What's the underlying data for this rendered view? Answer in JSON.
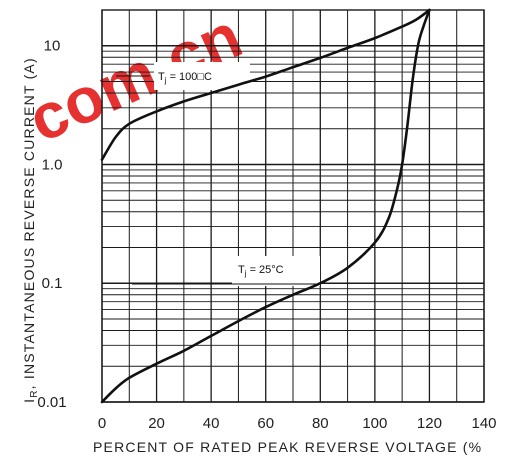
{
  "chart_data": {
    "type": "line",
    "title": "",
    "xlabel": "PERCENT OF RATED PEAK  REVERSE VOLTAGE (%",
    "ylabel_main": "I",
    "ylabel_sub": "R",
    "ylabel_rest": ", INSTANTANEOUS REVERSE CURRENT (A)",
    "xlim": [
      0,
      140
    ],
    "ylim": [
      0.01,
      20
    ],
    "yscale": "log",
    "grid": true,
    "x_ticks": [
      "0",
      "20",
      "40",
      "60",
      "80",
      "100",
      "120",
      "140"
    ],
    "y_ticks": [
      {
        "value": 0.01,
        "label": "0.01"
      },
      {
        "value": 0.1,
        "label": "0.1"
      },
      {
        "value": 1,
        "label": "1.0"
      },
      {
        "value": 10,
        "label": "10"
      }
    ],
    "series": [
      {
        "annotation_main": "T",
        "annotation_sub": "j",
        "annotation_rest": " = 100□C",
        "x": [
          0,
          5,
          10,
          20,
          30,
          40,
          50,
          60,
          70,
          80,
          90,
          100,
          110,
          115,
          120
        ],
        "y": [
          1.1,
          1.7,
          2.2,
          2.8,
          3.4,
          4.0,
          4.7,
          5.5,
          6.6,
          7.9,
          9.6,
          11.6,
          14.5,
          16.5,
          20
        ]
      },
      {
        "annotation_main": "T",
        "annotation_sub": "j",
        "annotation_rest": " = 25°C",
        "x": [
          0,
          5,
          10,
          20,
          30,
          40,
          50,
          60,
          70,
          80,
          90,
          100,
          105,
          108,
          110,
          112,
          114,
          116,
          118,
          120
        ],
        "y": [
          0.01,
          0.013,
          0.016,
          0.021,
          0.027,
          0.036,
          0.048,
          0.063,
          0.08,
          0.1,
          0.135,
          0.22,
          0.35,
          0.6,
          1.0,
          2.2,
          5.5,
          10.5,
          15.0,
          20
        ]
      }
    ]
  },
  "watermark": "com.cn",
  "colors": {
    "line": "#111111",
    "grid": "#1a1a1a",
    "watermark": "#e41b1b"
  }
}
